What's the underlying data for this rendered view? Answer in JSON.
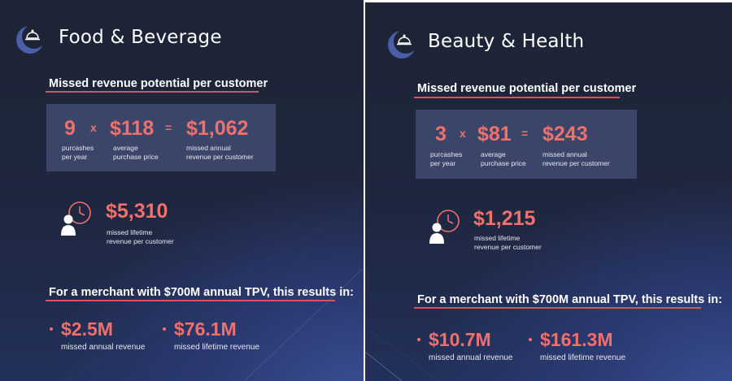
{
  "panels": [
    {
      "title": "Food & Beverage",
      "icon": "cloche-icon",
      "subheading": "Missed revenue potential per customer",
      "purchases": {
        "value": "9",
        "label": "purcashes\nper year"
      },
      "times_symbol": "x",
      "price": {
        "value": "$118",
        "label": "average\npurchase price"
      },
      "equals_symbol": "=",
      "annual": {
        "value": "$1,062",
        "label": "missed annual\nrevenue per customer"
      },
      "lifetime": {
        "value": "$5,310",
        "label": "missed lifetime\nrevenue per customer"
      },
      "merchant_heading": "For a merchant with $700M annual TPV, this results in:",
      "results": [
        {
          "value": "$2.5M",
          "label": "missed annual revenue"
        },
        {
          "value": "$76.1M",
          "label": "missed lifetime revenue"
        }
      ]
    },
    {
      "title": "Beauty & Health",
      "icon": "cloche-icon",
      "subheading": "Missed revenue potential per customer",
      "purchases": {
        "value": "3",
        "label": "purcashes\nper year"
      },
      "times_symbol": "x",
      "price": {
        "value": "$81",
        "label": "average\npurchase price"
      },
      "equals_symbol": "=",
      "annual": {
        "value": "$243",
        "label": "missed annual\nrevenue per customer"
      },
      "lifetime": {
        "value": "$1,215",
        "label": "missed lifetime\nrevenue per customer"
      },
      "merchant_heading": "For a merchant with $700M annual TPV, this results in:",
      "results": [
        {
          "value": "$10.7M",
          "label": "missed annual revenue"
        },
        {
          "value": "$161.3M",
          "label": "missed lifetime revenue"
        }
      ]
    }
  ],
  "colors": {
    "accent": "#f0706c",
    "underline": "#d9535a",
    "box": "#3a4569",
    "background": "#1f2740"
  }
}
